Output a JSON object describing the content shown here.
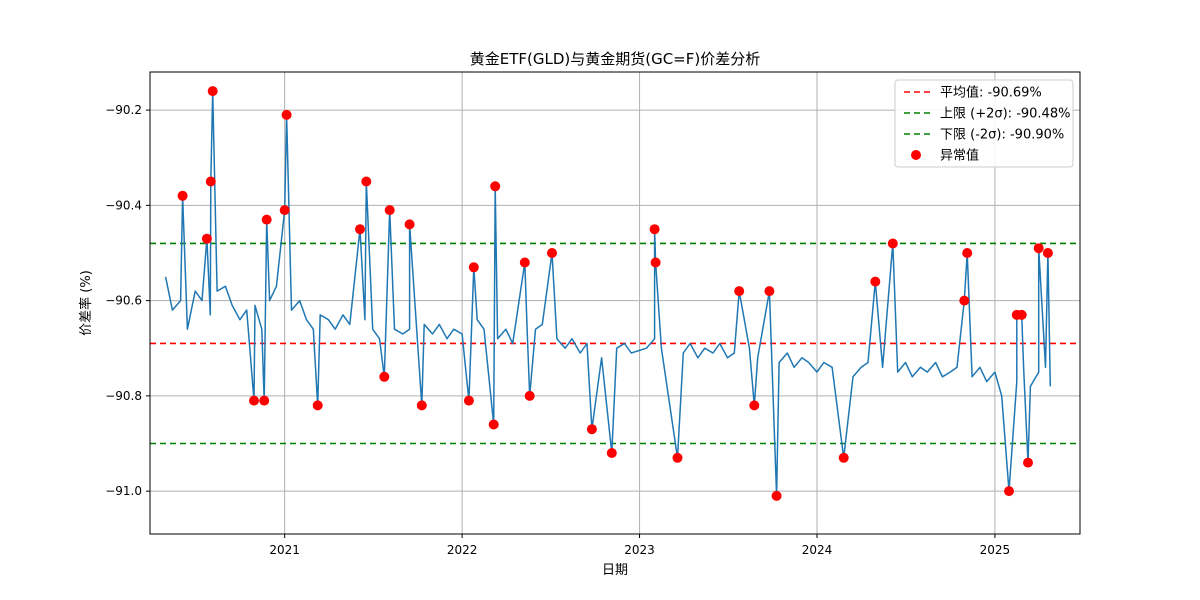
{
  "chart_data": {
    "type": "line",
    "title": "黄金ETF(GLD)与黄金期货(GC=F)价差分析",
    "xlabel": "日期",
    "ylabel": "价差率 (%)",
    "x_ticks": [
      "2021",
      "2022",
      "2023",
      "2024",
      "2025"
    ],
    "y_ticks": [
      "−90.2",
      "−90.4",
      "−90.6",
      "−90.8",
      "−91.0"
    ],
    "ylim": [
      -91.09,
      -90.12
    ],
    "xlim": [
      "2020-03-30",
      "2025-06-25"
    ],
    "grid": true,
    "legend_position": "upper right",
    "legend": [
      {
        "label": "平均值: -90.69%",
        "kind": "dashed-line",
        "color": "#ff0000"
      },
      {
        "label": "上限 (+2σ): -90.48%",
        "kind": "dashed-line",
        "color": "#008000"
      },
      {
        "label": "下限 (-2σ): -90.90%",
        "kind": "dashed-line",
        "color": "#008000"
      },
      {
        "label": "异常值",
        "kind": "marker",
        "color": "#ff0000"
      }
    ],
    "reference_lines": [
      {
        "name": "mean",
        "value": -90.69,
        "color": "#ff0000"
      },
      {
        "name": "upper",
        "value": -90.48,
        "color": "#008000"
      },
      {
        "name": "lower",
        "value": -90.9,
        "color": "#008000"
      }
    ],
    "series": [
      {
        "kind": "line",
        "color": "#1f77b4",
        "points": [
          [
            "2020-05-01",
            -90.55
          ],
          [
            "2020-05-15",
            -90.62
          ],
          [
            "2020-06-01",
            -90.6
          ],
          [
            "2020-06-15",
            -90.66
          ],
          [
            "2020-07-01",
            -90.58
          ],
          [
            "2020-07-15",
            -90.6
          ],
          [
            "2020-08-01",
            -90.63
          ],
          [
            "2020-08-15",
            -90.58
          ],
          [
            "2020-09-01",
            -90.57
          ],
          [
            "2020-09-15",
            -90.61
          ],
          [
            "2020-10-01",
            -90.64
          ],
          [
            "2020-10-15",
            -90.62
          ],
          [
            "2020-11-01",
            -90.61
          ],
          [
            "2020-11-15",
            -90.66
          ],
          [
            "2020-12-01",
            -90.6
          ],
          [
            "2020-12-15",
            -90.57
          ],
          [
            "2021-01-15",
            -90.62
          ],
          [
            "2021-02-01",
            -90.6
          ],
          [
            "2021-02-15",
            -90.64
          ],
          [
            "2021-03-01",
            -90.66
          ],
          [
            "2021-03-15",
            -90.63
          ],
          [
            "2021-04-01",
            -90.64
          ],
          [
            "2021-04-15",
            -90.66
          ],
          [
            "2021-05-01",
            -90.63
          ],
          [
            "2021-05-15",
            -90.65
          ],
          [
            "2021-06-15",
            -90.64
          ],
          [
            "2021-07-01",
            -90.66
          ],
          [
            "2021-07-15",
            -90.68
          ],
          [
            "2021-08-15",
            -90.66
          ],
          [
            "2021-09-01",
            -90.67
          ],
          [
            "2021-09-15",
            -90.66
          ],
          [
            "2021-10-15",
            -90.65
          ],
          [
            "2021-11-01",
            -90.67
          ],
          [
            "2021-11-15",
            -90.65
          ],
          [
            "2021-12-01",
            -90.68
          ],
          [
            "2021-12-15",
            -90.66
          ],
          [
            "2022-01-01",
            -90.67
          ],
          [
            "2022-02-01",
            -90.64
          ],
          [
            "2022-02-15",
            -90.66
          ],
          [
            "2022-03-15",
            -90.68
          ],
          [
            "2022-04-01",
            -90.66
          ],
          [
            "2022-04-15",
            -90.69
          ],
          [
            "2022-05-15",
            -90.67
          ],
          [
            "2022-06-01",
            -90.66
          ],
          [
            "2022-06-15",
            -90.65
          ],
          [
            "2022-07-15",
            -90.68
          ],
          [
            "2022-08-01",
            -90.7
          ],
          [
            "2022-08-15",
            -90.68
          ],
          [
            "2022-09-01",
            -90.71
          ],
          [
            "2022-09-15",
            -90.69
          ],
          [
            "2022-10-15",
            -90.72
          ],
          [
            "2022-11-15",
            -90.7
          ],
          [
            "2022-12-01",
            -90.69
          ],
          [
            "2022-12-15",
            -90.71
          ],
          [
            "2023-01-15",
            -90.7
          ],
          [
            "2023-02-01",
            -90.68
          ],
          [
            "2023-02-15",
            -90.7
          ],
          [
            "2023-04-01",
            -90.71
          ],
          [
            "2023-04-15",
            -90.69
          ],
          [
            "2023-05-01",
            -90.72
          ],
          [
            "2023-05-15",
            -90.7
          ],
          [
            "2023-06-01",
            -90.71
          ],
          [
            "2023-06-15",
            -90.69
          ],
          [
            "2023-07-01",
            -90.72
          ],
          [
            "2023-07-15",
            -90.71
          ],
          [
            "2023-08-15",
            -90.7
          ],
          [
            "2023-09-01",
            -90.72
          ],
          [
            "2023-10-15",
            -90.73
          ],
          [
            "2023-11-01",
            -90.71
          ],
          [
            "2023-11-15",
            -90.74
          ],
          [
            "2023-12-01",
            -90.72
          ],
          [
            "2023-12-15",
            -90.73
          ],
          [
            "2024-01-01",
            -90.75
          ],
          [
            "2024-01-15",
            -90.73
          ],
          [
            "2024-02-01",
            -90.74
          ],
          [
            "2024-03-15",
            -90.76
          ],
          [
            "2024-04-01",
            -90.74
          ],
          [
            "2024-04-15",
            -90.73
          ],
          [
            "2024-05-15",
            -90.74
          ],
          [
            "2024-06-15",
            -90.75
          ],
          [
            "2024-07-01",
            -90.73
          ],
          [
            "2024-07-15",
            -90.76
          ],
          [
            "2024-08-01",
            -90.74
          ],
          [
            "2024-08-15",
            -90.75
          ],
          [
            "2024-09-01",
            -90.73
          ],
          [
            "2024-09-15",
            -90.76
          ],
          [
            "2024-10-01",
            -90.75
          ],
          [
            "2024-10-15",
            -90.74
          ],
          [
            "2024-11-15",
            -90.76
          ],
          [
            "2024-12-01",
            -90.74
          ],
          [
            "2024-12-15",
            -90.77
          ],
          [
            "2025-01-01",
            -90.75
          ],
          [
            "2025-01-15",
            -90.8
          ],
          [
            "2025-02-15",
            -90.77
          ],
          [
            "2025-03-01",
            -90.74
          ],
          [
            "2025-03-15",
            -90.78
          ],
          [
            "2025-04-01",
            -90.75
          ],
          [
            "2025-04-15",
            -90.74
          ],
          [
            "2025-04-25",
            -90.78
          ]
        ]
      },
      {
        "kind": "scatter",
        "name": "异常值",
        "color": "#ff0000",
        "points": [
          [
            "2020-06-05",
            -90.38
          ],
          [
            "2020-07-25",
            -90.47
          ],
          [
            "2020-08-02",
            -90.35
          ],
          [
            "2020-08-06",
            -90.16
          ],
          [
            "2020-10-30",
            -90.81
          ],
          [
            "2020-11-20",
            -90.81
          ],
          [
            "2020-11-25",
            -90.43
          ],
          [
            "2021-01-01",
            -90.41
          ],
          [
            "2021-01-05",
            -90.21
          ],
          [
            "2021-03-10",
            -90.82
          ],
          [
            "2021-06-05",
            -90.45
          ],
          [
            "2021-06-18",
            -90.35
          ],
          [
            "2021-07-25",
            -90.76
          ],
          [
            "2021-08-05",
            -90.41
          ],
          [
            "2021-09-15",
            -90.44
          ],
          [
            "2021-10-10",
            -90.82
          ],
          [
            "2022-01-15",
            -90.81
          ],
          [
            "2022-01-25",
            -90.53
          ],
          [
            "2022-03-07",
            -90.86
          ],
          [
            "2022-03-10",
            -90.36
          ],
          [
            "2022-05-10",
            -90.52
          ],
          [
            "2022-05-20",
            -90.8
          ],
          [
            "2022-07-05",
            -90.5
          ],
          [
            "2022-09-25",
            -90.87
          ],
          [
            "2022-11-05",
            -90.92
          ],
          [
            "2023-02-01",
            -90.45
          ],
          [
            "2023-02-03",
            -90.52
          ],
          [
            "2023-03-20",
            -90.93
          ],
          [
            "2023-07-25",
            -90.58
          ],
          [
            "2023-08-25",
            -90.82
          ],
          [
            "2023-09-25",
            -90.58
          ],
          [
            "2023-10-10",
            -91.01
          ],
          [
            "2024-02-25",
            -90.93
          ],
          [
            "2024-04-30",
            -90.56
          ],
          [
            "2024-06-05",
            -90.48
          ],
          [
            "2024-10-30",
            -90.6
          ],
          [
            "2024-11-05",
            -90.5
          ],
          [
            "2025-01-30",
            -91.0
          ],
          [
            "2025-02-15",
            -90.63
          ],
          [
            "2025-02-25",
            -90.63
          ],
          [
            "2025-03-10",
            -90.94
          ],
          [
            "2025-04-01",
            -90.49
          ],
          [
            "2025-04-20",
            -90.5
          ]
        ]
      }
    ]
  }
}
